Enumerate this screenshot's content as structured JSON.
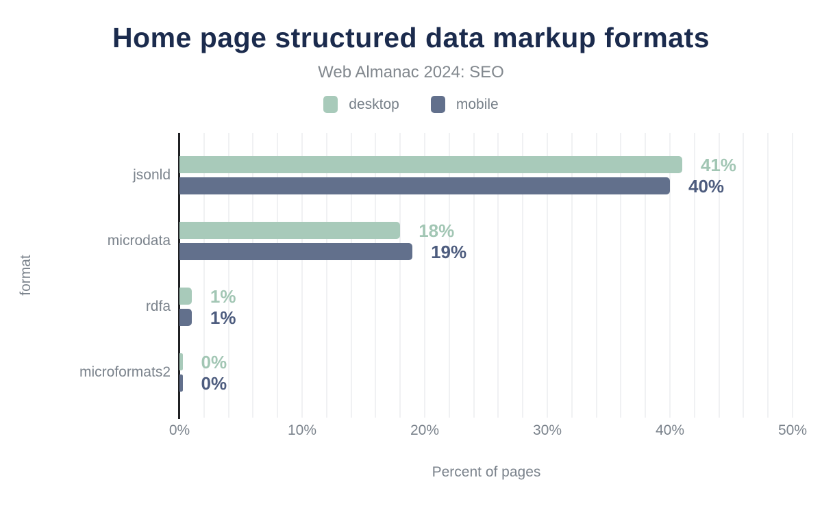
{
  "title": "Home page structured data markup formats",
  "subtitle": "Web Almanac 2024: SEO",
  "legend": {
    "items": [
      {
        "label": "desktop",
        "color": "#a8caba"
      },
      {
        "label": "mobile",
        "color": "#62708c"
      }
    ]
  },
  "axes": {
    "x_title": "Percent of pages",
    "y_title": "format"
  },
  "chart_data": {
    "type": "bar",
    "orientation": "horizontal",
    "title": "Home page structured data markup formats",
    "subtitle": "Web Almanac 2024: SEO",
    "xlabel": "Percent of pages",
    "ylabel": "format",
    "categories": [
      "jsonld",
      "microdata",
      "rdfa",
      "microformats2"
    ],
    "series": [
      {
        "name": "desktop",
        "color": "#a8caba",
        "label_color": "#a2c6b4",
        "values": [
          41,
          18,
          1,
          0
        ],
        "data_labels": [
          "41%",
          "18%",
          "1%",
          "0%"
        ]
      },
      {
        "name": "mobile",
        "color": "#62708c",
        "label_color": "#4d5c7e",
        "values": [
          40,
          19,
          1,
          0
        ],
        "data_labels": [
          "40%",
          "19%",
          "1%",
          "0%"
        ]
      }
    ],
    "xlim": [
      0,
      50
    ],
    "x_ticks": [
      {
        "value": 0,
        "label": "0%"
      },
      {
        "value": 10,
        "label": "10%"
      },
      {
        "value": 20,
        "label": "20%"
      },
      {
        "value": 30,
        "label": "30%"
      },
      {
        "value": 40,
        "label": "40%"
      },
      {
        "value": 50,
        "label": "50%"
      }
    ],
    "grid": {
      "show": true,
      "step_percent": 2,
      "color": "#f0f1f3"
    },
    "legend_position": "top",
    "data_label_position": "outside-right"
  },
  "colors": {
    "title": "#1b2b4d",
    "subtitle": "#82888e",
    "axis_text": "#7b838c",
    "axis_line": "#202124",
    "background": "#ffffff"
  }
}
